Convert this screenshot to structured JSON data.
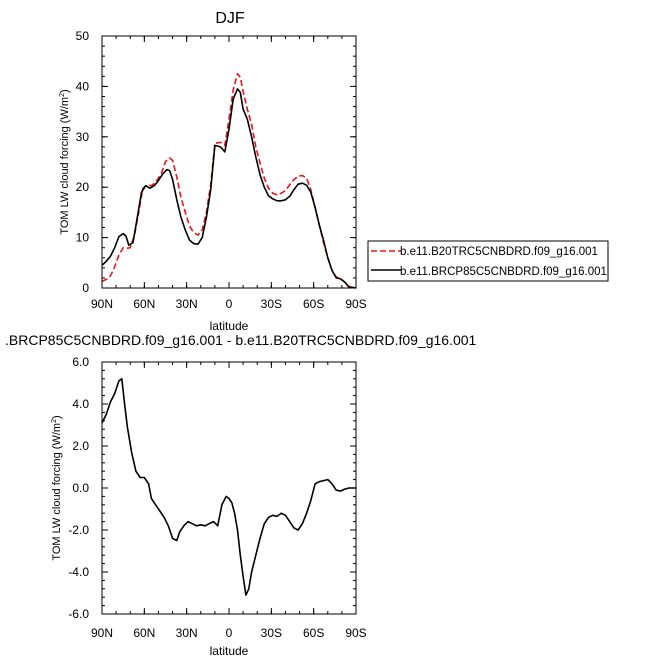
{
  "colors": {
    "dashed_series": "#e8161b",
    "solid_series": "#000000",
    "axis": "#000000"
  },
  "x_tick_labels": [
    "90N",
    "60N",
    "30N",
    "0",
    "30S",
    "60S",
    "90S"
  ],
  "chart_data": [
    {
      "type": "line",
      "title": "DJF",
      "xlabel": "latitude",
      "ylabel": "TOM LW cloud forcing (W/m",
      "ylabel_sup": "2",
      "ylabel_close": ")",
      "xlim": [
        90,
        -90
      ],
      "ylim": [
        0,
        50
      ],
      "yticks": [
        0,
        10,
        20,
        30,
        40,
        50
      ],
      "ytick_labels": [
        "0",
        "10",
        "20",
        "30",
        "40",
        "50"
      ],
      "legend": "right",
      "series": [
        {
          "name": "b.e11.B20TRC5CNBDRD.f09_g16.001",
          "style": "dashed",
          "x": [
            90,
            85,
            82,
            78,
            75,
            72,
            70,
            67,
            64,
            61,
            58,
            55,
            52,
            48,
            45,
            42,
            40,
            37,
            34,
            31,
            28,
            25,
            22,
            19,
            16,
            13,
            10,
            6,
            3,
            0,
            -3,
            -6,
            -8,
            -10,
            -13,
            -16,
            -19,
            -22,
            -25,
            -28,
            -31,
            -34,
            -37,
            -40,
            -43,
            -46,
            -49,
            -52,
            -55,
            -58,
            -61,
            -64,
            -67,
            -70,
            -73,
            -76,
            -79,
            -82,
            -85,
            -88,
            -90
          ],
          "y": [
            1.3,
            2.0,
            3.5,
            6.5,
            8.0,
            7.9,
            8.0,
            10.5,
            15.0,
            19.8,
            20.5,
            20.3,
            21.0,
            22.7,
            25.1,
            25.8,
            25.3,
            22.0,
            18.0,
            15.0,
            12.3,
            11.0,
            10.5,
            11.5,
            15.0,
            20.5,
            28.7,
            28.9,
            28.3,
            33.5,
            39.3,
            42.5,
            41.8,
            39.0,
            35.5,
            32.5,
            28.0,
            24.8,
            21.8,
            19.8,
            18.8,
            18.5,
            18.8,
            19.3,
            20.5,
            21.5,
            22.2,
            22.3,
            21.8,
            19.5,
            16.0,
            12.5,
            9.0,
            6.0,
            3.5,
            2.2,
            1.8,
            1.2,
            0.3,
            0.1,
            0.0
          ]
        },
        {
          "name": "b.e11.BRCP85C5CNBDRD.f09_g16.001",
          "style": "solid",
          "x": [
            90,
            87,
            84,
            81,
            78,
            75,
            73,
            71,
            68,
            65,
            62,
            59,
            56,
            53,
            50,
            47,
            44,
            42,
            40,
            37,
            34,
            31,
            28,
            25,
            22,
            19,
            16,
            13,
            10,
            6,
            3,
            0,
            -3,
            -6,
            -8,
            -10,
            -13,
            -16,
            -19,
            -22,
            -25,
            -28,
            -31,
            -34,
            -37,
            -40,
            -43,
            -46,
            -49,
            -52,
            -55,
            -58,
            -61,
            -64,
            -67,
            -70,
            -73,
            -76,
            -79,
            -82,
            -85,
            -88,
            -90
          ],
          "y": [
            4.5,
            5.3,
            6.3,
            8.0,
            10.2,
            10.8,
            10.3,
            8.5,
            9.0,
            14.0,
            19.0,
            20.3,
            19.8,
            20.3,
            21.3,
            22.6,
            23.5,
            23.3,
            21.5,
            17.5,
            14.0,
            11.5,
            9.5,
            8.8,
            8.7,
            10.0,
            14.0,
            19.5,
            28.3,
            28.0,
            27.0,
            31.5,
            37.5,
            39.5,
            38.8,
            35.5,
            33.5,
            30.0,
            26.0,
            22.5,
            20.0,
            18.3,
            17.7,
            17.3,
            17.3,
            17.5,
            18.2,
            19.5,
            20.6,
            20.8,
            20.4,
            19.0,
            16.0,
            12.5,
            9.5,
            6.0,
            3.5,
            2.0,
            1.8,
            1.2,
            0.2,
            0.1,
            0.0
          ]
        }
      ]
    },
    {
      "type": "line",
      "title": ".BRCP85C5CNBDRD.f09_g16.001 - b.e11.B20TRC5CNBDRD.f09_g16.001",
      "xlabel": "latitude",
      "ylabel": "TOM LW cloud forcing (W/m",
      "ylabel_sup": "2",
      "ylabel_close": ")",
      "xlim": [
        90,
        -90
      ],
      "ylim": [
        -6,
        6
      ],
      "yticks": [
        -6,
        -4,
        -2,
        0,
        2,
        4,
        6
      ],
      "ytick_labels": [
        "-6.0",
        "-4.0",
        "-2.0",
        "0.0",
        "2.0",
        "4.0",
        "6.0"
      ],
      "series": [
        {
          "name": "",
          "style": "solid",
          "x": [
            90,
            87,
            84,
            81,
            78,
            76,
            74,
            72,
            69,
            66,
            63,
            60,
            57,
            55,
            52,
            49,
            46,
            43,
            40,
            37,
            35,
            32,
            29,
            26,
            23,
            20,
            17,
            14,
            11,
            8,
            5,
            2,
            0,
            -2,
            -4,
            -6,
            -8,
            -10,
            -12,
            -14,
            -16,
            -19,
            -22,
            -25,
            -28,
            -31,
            -34,
            -37,
            -40,
            -43,
            -46,
            -49,
            -52,
            -55,
            -58,
            -61,
            -64,
            -67,
            -70,
            -73,
            -76,
            -79,
            -82,
            -85,
            -88,
            -90
          ],
          "y": [
            3.1,
            3.5,
            4.1,
            4.5,
            5.1,
            5.2,
            4.0,
            2.9,
            1.7,
            0.8,
            0.5,
            0.5,
            0.2,
            -0.5,
            -0.8,
            -1.1,
            -1.4,
            -1.8,
            -2.4,
            -2.5,
            -2.1,
            -1.8,
            -1.6,
            -1.7,
            -1.8,
            -1.75,
            -1.8,
            -1.7,
            -1.6,
            -1.8,
            -0.8,
            -0.4,
            -0.5,
            -0.7,
            -1.2,
            -2.0,
            -3.2,
            -4.2,
            -5.1,
            -4.8,
            -4.0,
            -3.2,
            -2.4,
            -1.7,
            -1.4,
            -1.3,
            -1.35,
            -1.2,
            -1.3,
            -1.6,
            -1.9,
            -2.0,
            -1.7,
            -1.2,
            -0.6,
            0.2,
            0.3,
            0.35,
            0.4,
            0.2,
            -0.1,
            -0.15,
            -0.05,
            0.0,
            0.0,
            0.0
          ]
        }
      ]
    }
  ]
}
